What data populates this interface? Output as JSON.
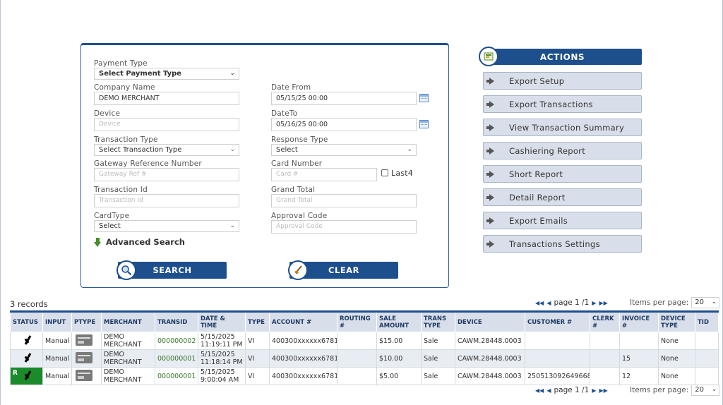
{
  "search": {
    "payment_type": {
      "label": "Payment Type",
      "value": "Select Payment Type"
    },
    "company_name": {
      "label": "Company Name",
      "value": "DEMO MERCHANT"
    },
    "device": {
      "label": "Device",
      "placeholder": "Device"
    },
    "transaction_type": {
      "label": "Transaction Type",
      "value": "Select Transaction Type"
    },
    "gateway_ref": {
      "label": "Gateway Reference Number",
      "placeholder": "Gateway Ref #"
    },
    "transaction_id": {
      "label": "Transaction Id",
      "placeholder": "Transaction Id"
    },
    "card_type": {
      "label": "CardType",
      "value": "Select"
    },
    "date_from": {
      "label": "Date From",
      "value": "05/15/25 00:00"
    },
    "date_to": {
      "label": "DateTo",
      "value": "05/16/25 00:00"
    },
    "response_type": {
      "label": "Response Type",
      "value": "Select"
    },
    "card_number": {
      "label": "Card Number",
      "placeholder": "Card #"
    },
    "last4_label": "Last4",
    "grand_total": {
      "label": "Grand Total",
      "placeholder": "Grand Total"
    },
    "approval_code": {
      "label": "Approval Code",
      "placeholder": "Approval Code"
    },
    "advanced_search": "Advanced Search",
    "search_button": "SEARCH",
    "clear_button": "CLEAR"
  },
  "actions": {
    "header": "ACTIONS",
    "items": [
      "Export Setup",
      "Export Transactions",
      "View Transaction Summary",
      "Cashiering Report",
      "Short Report",
      "Detail Report",
      "Export Emails",
      "Transactions Settings"
    ]
  },
  "records": {
    "count": "3 records",
    "pager_text": "page 1 /1",
    "items_per_page_label": "Items per page:",
    "items_per_page_value": "20"
  },
  "table": {
    "headers": [
      "STATUS",
      "INPUT",
      "PTYPE",
      "MERCHANT",
      "TRANSID",
      "DATE & TIME",
      "TYPE",
      "ACCOUNT #",
      "ROUTING #",
      "SALE AMOUNT",
      "TRANS TYPE",
      "DEVICE",
      "CUSTOMER #",
      "CLERK #",
      "INVOICE #",
      "DEVICE TYPE",
      "TID"
    ],
    "rows": [
      {
        "status_mark": "",
        "input": "Manual",
        "merchant": "DEMO MERCHANT",
        "transid": "000000002",
        "datetime": "5/15/2025 11:19:11 PM",
        "type": "VI",
        "account": "400300xxxxxx6781",
        "routing": "",
        "amount": "$15.00",
        "trans_type": "Sale",
        "device": "CAWM.28448.0003",
        "customer": "",
        "clerk": "",
        "invoice": "",
        "device_type": "None",
        "tid": ""
      },
      {
        "status_mark": "",
        "input": "Manual",
        "merchant": "DEMO MERCHANT",
        "transid": "000000001",
        "datetime": "5/15/2025 11:18:14 PM",
        "type": "VI",
        "account": "400300xxxxxx6781",
        "routing": "",
        "amount": "$10.00",
        "trans_type": "Sale",
        "device": "CAWM.28448.0003",
        "customer": "",
        "clerk": "",
        "invoice": "15",
        "device_type": "None",
        "tid": ""
      },
      {
        "status_mark": "R",
        "input": "Manual",
        "merchant": "DEMO MERCHANT",
        "transid": "000000001",
        "datetime": "5/15/2025 9:00:04 AM",
        "type": "VI",
        "account": "400300xxxxxx6781",
        "routing": "",
        "amount": "$5.00",
        "trans_type": "Sale",
        "device": "CAWM.28448.0003",
        "customer": "250513092649668",
        "clerk": "",
        "invoice": "12",
        "device_type": "None",
        "tid": ""
      }
    ]
  },
  "colors": {
    "primary": "#1d4f8c",
    "accent_green": "#1a8a2a",
    "row_alt": "#e8ecf3"
  }
}
